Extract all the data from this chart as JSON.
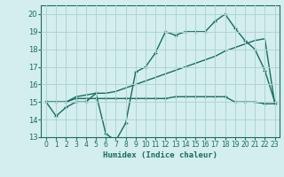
{
  "x": [
    0,
    1,
    2,
    3,
    4,
    5,
    6,
    7,
    8,
    9,
    10,
    11,
    12,
    13,
    14,
    15,
    16,
    17,
    18,
    19,
    20,
    21,
    22,
    23
  ],
  "line1": [
    15.0,
    14.2,
    14.7,
    15.0,
    15.0,
    15.5,
    13.2,
    12.8,
    13.8,
    16.7,
    17.0,
    17.8,
    19.0,
    18.8,
    19.0,
    19.0,
    19.0,
    19.6,
    20.0,
    19.2,
    18.5,
    18.0,
    16.8,
    15.0
  ],
  "line2": [
    15.0,
    15.0,
    15.0,
    15.2,
    15.2,
    15.2,
    15.2,
    15.2,
    15.2,
    15.2,
    15.2,
    15.2,
    15.2,
    15.3,
    15.3,
    15.3,
    15.3,
    15.3,
    15.3,
    15.0,
    15.0,
    15.0,
    14.9,
    14.9
  ],
  "line3": [
    15.0,
    15.0,
    15.0,
    15.3,
    15.4,
    15.5,
    15.5,
    15.6,
    15.8,
    16.0,
    16.2,
    16.4,
    16.6,
    16.8,
    17.0,
    17.2,
    17.4,
    17.6,
    17.9,
    18.1,
    18.3,
    18.5,
    18.6,
    14.9
  ],
  "color": "#1a6b5e",
  "bg_color": "#d4eeee",
  "grid_color": "#aed4d4",
  "xlabel": "Humidex (Indice chaleur)",
  "ylim": [
    13,
    20.5
  ],
  "xlim": [
    -0.5,
    23.5
  ],
  "yticks": [
    13,
    14,
    15,
    16,
    17,
    18,
    19,
    20
  ],
  "xticks": [
    0,
    1,
    2,
    3,
    4,
    5,
    6,
    7,
    8,
    9,
    10,
    11,
    12,
    13,
    14,
    15,
    16,
    17,
    18,
    19,
    20,
    21,
    22,
    23
  ]
}
